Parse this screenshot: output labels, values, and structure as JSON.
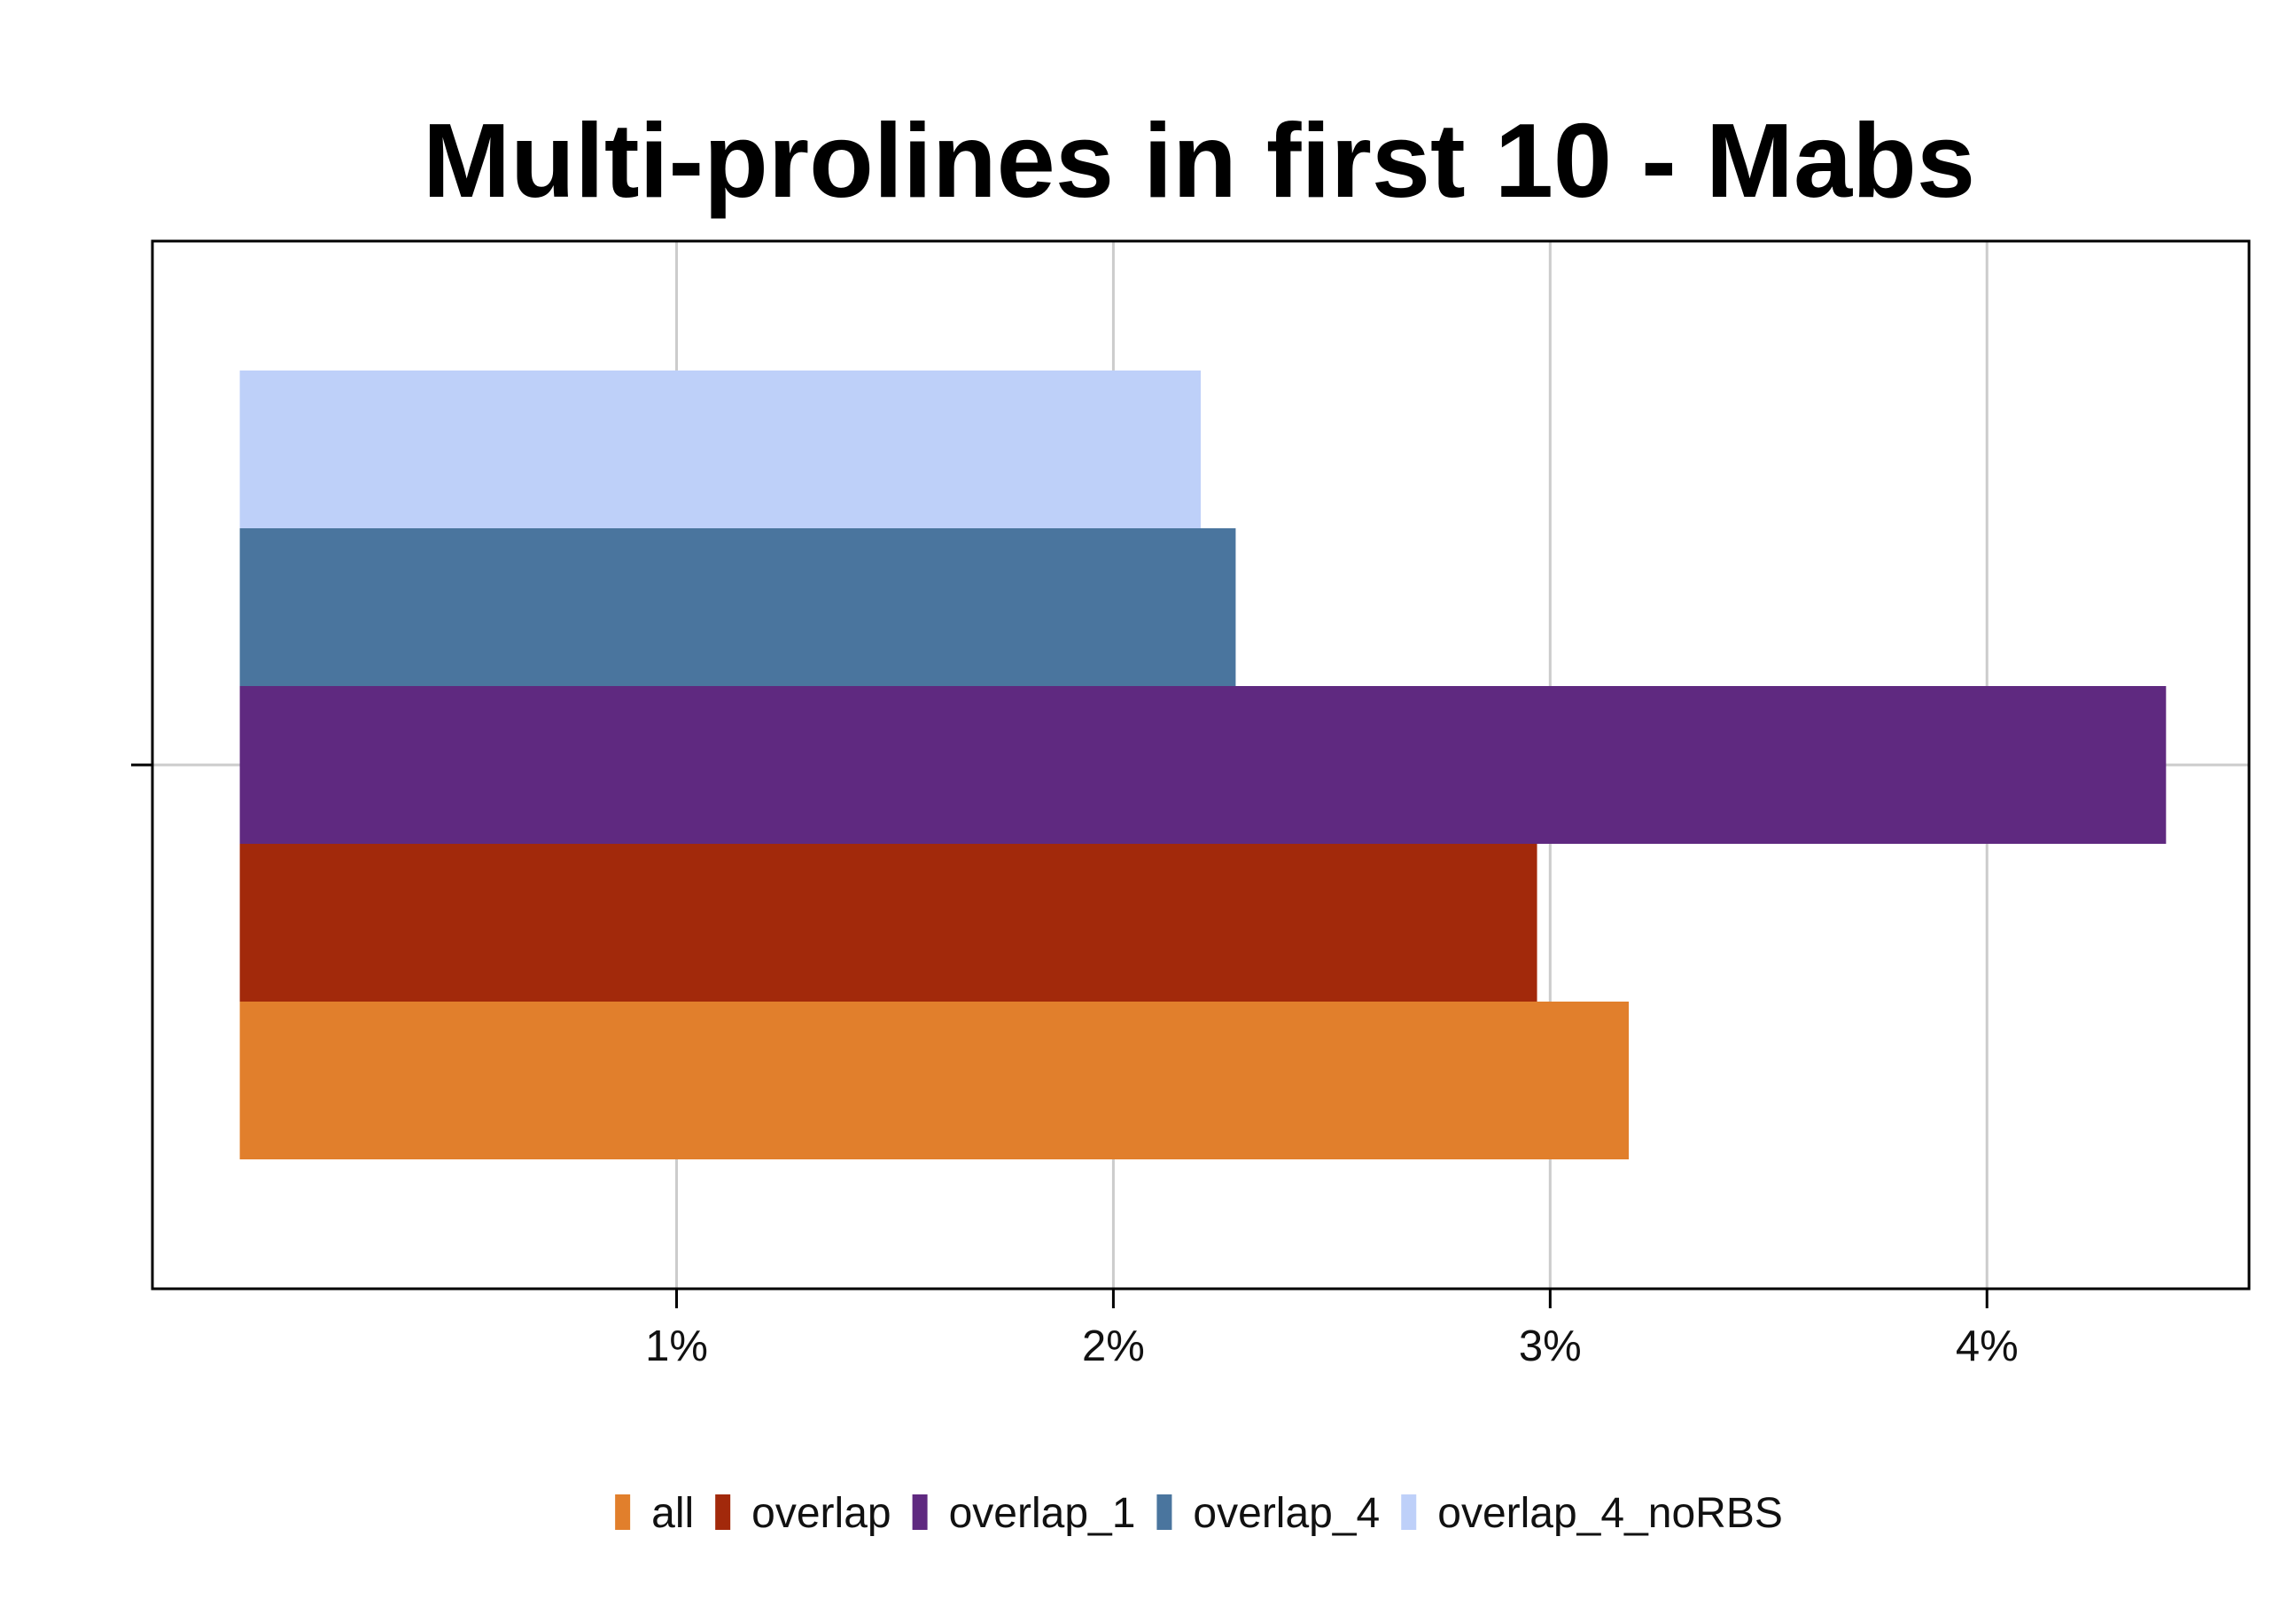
{
  "chart_data": {
    "type": "bar",
    "orientation": "horizontal",
    "title": "Multi-prolines in first 10 - Mabs",
    "xlabel": "",
    "ylabel": "",
    "x_tick_labels": [
      "1%",
      "2%",
      "3%",
      "4%"
    ],
    "x_ticks": [
      1,
      2,
      3,
      4
    ],
    "xlim": [
      -0.2,
      4.6
    ],
    "grid": true,
    "legend_position": "bottom",
    "series": [
      {
        "name": "all",
        "value": 3.18,
        "color": "#E17F2C"
      },
      {
        "name": "overlap",
        "value": 2.97,
        "color": "#A2290B"
      },
      {
        "name": "overlap_1",
        "value": 4.41,
        "color": "#5F2980"
      },
      {
        "name": "overlap_4",
        "value": 2.28,
        "color": "#4A759E"
      },
      {
        "name": "overlap_4_noRBS",
        "value": 2.2,
        "color": "#BED0F9"
      }
    ]
  }
}
